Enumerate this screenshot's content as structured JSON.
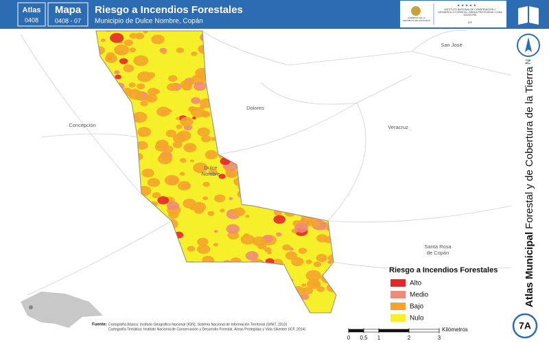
{
  "header": {
    "atlas_label": "Atlas",
    "atlas_code": "0408",
    "map_label": "Mapa",
    "map_code": "0408 - 07",
    "title": "Riesgo a Incendios Forestales",
    "subtitle": "Municipio de Dulce Nombre, Copán",
    "logo_left": "GOBIERNO DE LA REPÚBLICA DE HONDURAS",
    "logo_right": "INSTITUTO NACIONAL DE CONSERVACIÓN Y DESARROLLO FORESTAL, ÁREAS PROTEGIDAS Y VIDA SILVESTRE",
    "logo_right_short": "ICF"
  },
  "places": [
    "San José",
    "Dolores",
    "Concepción",
    "Veracruz",
    "Dulce Nombre",
    "Santa Rosa de Copán"
  ],
  "legend": {
    "title": "Riesgo a Incendios Forestales",
    "items": [
      {
        "label": "Alto",
        "color": "#e8262a"
      },
      {
        "label": "Medio",
        "color": "#f08a7a"
      },
      {
        "label": "Bajo",
        "color": "#f4a42a"
      },
      {
        "label": "Nulo",
        "color": "#f5f02a"
      }
    ]
  },
  "scale": {
    "ticks": [
      0,
      0.5,
      1,
      2,
      3
    ],
    "unit": "Kilómetros"
  },
  "sidebar": {
    "north": "N",
    "title_bold": "Atlas Municipal",
    "title_rest": "Forestal y de Cobertura de la Tierra",
    "badge": "7A"
  },
  "sources": {
    "label": "Fuente:",
    "lines": [
      "Cartografía Básica: Instituto Geográfico Nacional (IGN), Sistema Nacional de Información Territorial (SINIT, 2013)",
      "Cartografía Temática: Instituto Nacional de Conservación y Desarrollo Forestal, Áreas Protegidas y Vida Silvestre (ICF, 2014)"
    ]
  }
}
